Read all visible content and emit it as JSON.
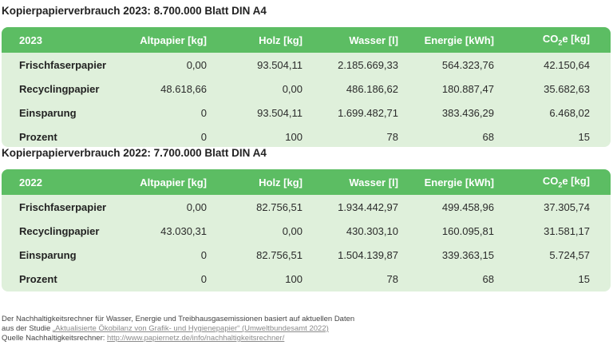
{
  "section_2023": {
    "title": "Kopierpapierverbrauch 2023: 8.700.000 Blatt DIN A4",
    "header": [
      "2023",
      "Altpapier [kg]",
      "Holz [kg]",
      "Wasser [l]",
      "Energie [kWh]"
    ],
    "co2_prefix": "CO",
    "co2_sub": "2",
    "co2_suffix": "e [kg]",
    "rows": [
      [
        "Frischfaserpapier",
        "0,00",
        "93.504,11",
        "2.185.669,33",
        "564.323,76",
        "42.150,64"
      ],
      [
        "Recyclingpapier",
        "48.618,66",
        "0,00",
        "486.186,62",
        "180.887,47",
        "35.682,63"
      ],
      [
        "Einsparung",
        "0",
        "93.504,11",
        "1.699.482,71",
        "383.436,29",
        "6.468,02"
      ],
      [
        "Prozent",
        "0",
        "100",
        "78",
        "68",
        "15"
      ]
    ]
  },
  "section_2022": {
    "title": "Kopierpapierverbrauch 2022: 7.700.000 Blatt DIN A4",
    "header": [
      "2022",
      "Altpapier [kg]",
      "Holz [kg]",
      "Wasser [l]",
      "Energie [kWh]"
    ],
    "co2_prefix": "CO",
    "co2_sub": "2",
    "co2_suffix": "e [kg]",
    "rows": [
      [
        "Frischfaserpapier",
        "0,00",
        "82.756,51",
        "1.934.442,97",
        "499.458,96",
        "37.305,74"
      ],
      [
        "Recyclingpapier",
        "43.030,31",
        "0,00",
        "430.303,10",
        "160.095,81",
        "31.581,17"
      ],
      [
        "Einsparung",
        "0",
        "82.756,51",
        "1.504.139,87",
        "339.363,15",
        "5.724,57"
      ],
      [
        "Prozent",
        "0",
        "100",
        "78",
        "68",
        "15"
      ]
    ]
  },
  "footer": {
    "line1": "Der Nachhaltigkeitsrechner für Wasser, Energie und Treibhausgasemissionen basiert auf aktuellen Daten",
    "line2_prefix": "aus der Studie ",
    "line2_link": "„Aktualisierte Ökobilanz von Grafik- und Hygienepapier“ (Umweltbundesamt 2022)",
    "line3_prefix": "Quelle Nachhaltigkeitsrechner: ",
    "line3_link": "http://www.papiernetz.de/info/nachhaltigkeitsrechner/"
  },
  "colors": {
    "header_green": "#5cbd63",
    "row_green": "#dff0db"
  }
}
